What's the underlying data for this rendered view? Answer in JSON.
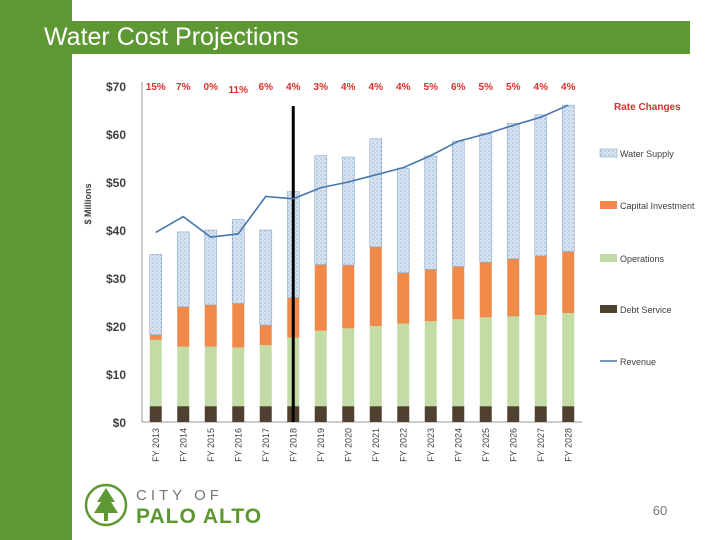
{
  "slide": {
    "title": "Water Cost Projections",
    "page_number": "60",
    "logo": {
      "line1": "CITY OF",
      "line2": "PALO ALTO"
    }
  },
  "colors": {
    "green": "#5e9833",
    "rate_red": "#d9302a",
    "water_supply": "#d6e4f2",
    "capital_investment": "#f08a4b",
    "operations": "#c3dca6",
    "debt_service": "#4f4030",
    "revenue": "#4677ab",
    "marker": "#000000"
  },
  "chart_data": {
    "type": "bar",
    "stacked": true,
    "ylabel": "$ Millions",
    "ylim": [
      0,
      70
    ],
    "yticks": [
      0,
      10,
      20,
      30,
      40,
      50,
      60,
      70
    ],
    "ytick_labels": [
      "$0",
      "$10",
      "$20",
      "$30",
      "$40",
      "$50",
      "$60",
      "$70"
    ],
    "categories": [
      "FY 2013",
      "FY 2014",
      "FY 2015",
      "FY 2016",
      "FY 2017",
      "FY 2018",
      "FY 2019",
      "FY 2020",
      "FY 2021",
      "FY 2022",
      "FY 2023",
      "FY 2024",
      "FY 2025",
      "FY 2026",
      "FY 2027",
      "FY 2028"
    ],
    "rate_changes": [
      "15%",
      "7%",
      "0%",
      "11%",
      "6%",
      "4%",
      "3%",
      "4%",
      "4%",
      "4%",
      "5%",
      "6%",
      "5%",
      "5%",
      "4%",
      "4%"
    ],
    "rate_changes_label": "Rate Changes",
    "series": [
      {
        "name": "Debt Service",
        "key": "debt_service",
        "values": [
          3.3,
          3.3,
          3.3,
          3.3,
          3.3,
          3.3,
          3.3,
          3.3,
          3.3,
          3.3,
          3.3,
          3.3,
          3.3,
          3.3,
          3.3,
          3.3
        ]
      },
      {
        "name": "Operations",
        "key": "operations",
        "values": [
          13.8,
          12.4,
          12.4,
          12.2,
          12.7,
          14.3,
          15.7,
          16.2,
          16.7,
          17.2,
          17.7,
          18.1,
          18.5,
          18.7,
          19.0,
          19.4
        ]
      },
      {
        "name": "Capital Investment",
        "key": "capital_investment",
        "values": [
          1.1,
          8.3,
          8.7,
          9.2,
          4.2,
          8.3,
          13.8,
          13.2,
          16.5,
          10.6,
          10.8,
          11.0,
          11.5,
          12.0,
          12.3,
          12.8
        ]
      },
      {
        "name": "Water Supply",
        "key": "water_supply",
        "values": [
          16.7,
          15.6,
          15.6,
          17.5,
          19.8,
          22.1,
          22.7,
          22.5,
          22.5,
          21.8,
          23.6,
          26.1,
          26.8,
          28.2,
          29.4,
          30.5
        ]
      }
    ],
    "line": {
      "name": "Revenue",
      "values": [
        39.5,
        42.8,
        38.5,
        39.2,
        47.0,
        46.5,
        48.8,
        50.0,
        51.5,
        53.0,
        55.5,
        58.5,
        60.0,
        61.8,
        63.5,
        66.0
      ]
    },
    "legend": [
      "Water Supply",
      "Capital Investment",
      "Operations",
      "Debt Service",
      "Revenue"
    ],
    "legend_position": "right",
    "marker_category": "FY 2018"
  }
}
